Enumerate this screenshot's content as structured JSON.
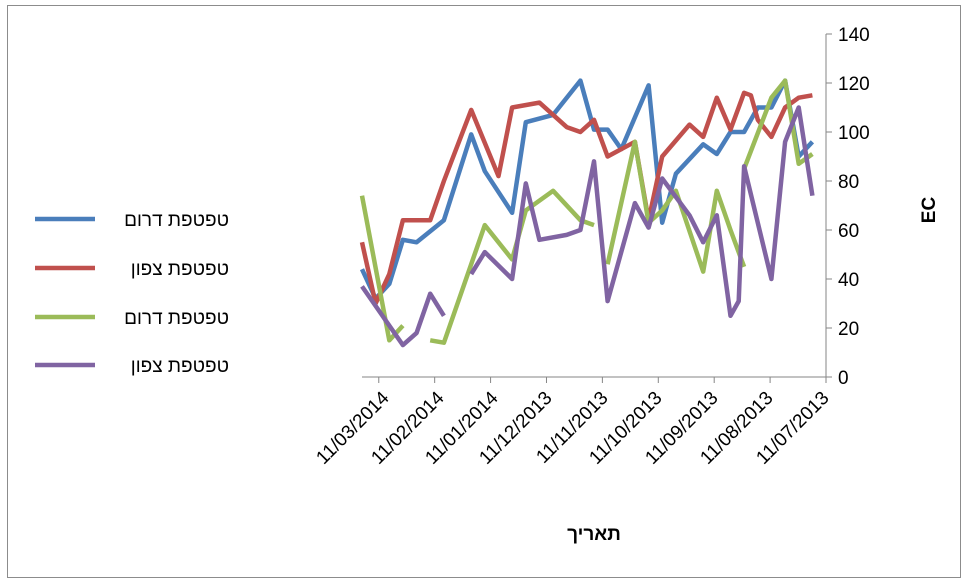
{
  "chart_data": {
    "type": "line",
    "xlabel": "תאריך",
    "ylabel": "EC",
    "ylim": [
      0,
      140
    ],
    "y_ticks": [
      "0",
      "20",
      "40",
      "60",
      "80",
      "100",
      "120",
      "140"
    ],
    "x_tick_labels": [
      "11/03/2014",
      "11/02/2014",
      "11/01/2014",
      "11/12/2013",
      "11/11/2013",
      "11/10/2013",
      "11/09/2013",
      "11/08/2013",
      "11/07/2013"
    ],
    "x_axis_reversed": true,
    "y_axis_position": "right",
    "legend_position": "left",
    "grid": false,
    "series": [
      {
        "name": "טפטפת דרום",
        "color": "#4a7ebb",
        "points": [
          [
            1,
            96
          ],
          [
            2,
            90
          ],
          [
            3,
            121
          ],
          [
            4,
            110
          ],
          [
            5,
            110
          ],
          [
            5.5,
            105
          ],
          [
            6,
            100
          ],
          [
            7,
            100
          ],
          [
            8,
            91
          ],
          [
            9,
            95
          ],
          [
            11,
            83
          ],
          [
            12,
            63
          ],
          [
            13,
            119
          ],
          [
            15,
            93
          ],
          [
            16,
            101
          ],
          [
            17,
            101
          ],
          [
            18,
            121
          ],
          [
            20,
            107
          ],
          [
            22,
            104
          ],
          [
            23,
            67
          ],
          [
            25,
            84
          ],
          [
            26,
            99
          ],
          [
            28,
            64
          ],
          [
            30,
            55
          ],
          [
            31,
            56
          ],
          [
            32,
            38
          ],
          [
            33,
            32
          ],
          [
            34,
            44
          ]
        ]
      },
      {
        "name": "טפטפת צפון",
        "color": "#c0504d",
        "points": [
          [
            1,
            115
          ],
          [
            2,
            114
          ],
          [
            3,
            110
          ],
          [
            4,
            98
          ],
          [
            5,
            105
          ],
          [
            5.5,
            115
          ],
          [
            6,
            116
          ],
          [
            7,
            101
          ],
          [
            8,
            114
          ],
          [
            9,
            98
          ],
          [
            10,
            103
          ],
          [
            12,
            90
          ],
          [
            13,
            64
          ],
          [
            14,
            96
          ],
          [
            16,
            90
          ],
          [
            17,
            105
          ],
          [
            18,
            100
          ],
          [
            19,
            102
          ],
          [
            21,
            112
          ],
          [
            23,
            110
          ],
          [
            24,
            82
          ],
          [
            26,
            109
          ],
          [
            28,
            80
          ],
          [
            29,
            64
          ],
          [
            31,
            64
          ],
          [
            32,
            42
          ],
          [
            33,
            30
          ],
          [
            34,
            55
          ]
        ]
      },
      {
        "name": "טפטפת דרום",
        "color": "#9bbb59",
        "points": [
          [
            1,
            91
          ],
          [
            2,
            87
          ],
          [
            3,
            121
          ],
          [
            4,
            114
          ],
          [
            6,
            85
          ],
          [
            null,
            null
          ],
          [
            6,
            45
          ],
          [
            7,
            60
          ],
          [
            8,
            76
          ],
          [
            9,
            43
          ],
          [
            11,
            76
          ],
          [
            12,
            68
          ],
          [
            13,
            63
          ],
          [
            14,
            96
          ],
          [
            16,
            46
          ],
          [
            null,
            null
          ],
          [
            17,
            62
          ],
          [
            18,
            64
          ],
          [
            20,
            76
          ],
          [
            22,
            68
          ],
          [
            23,
            48
          ],
          [
            25,
            62
          ],
          [
            28,
            14
          ],
          [
            29,
            15
          ],
          [
            null,
            null
          ],
          [
            31,
            21
          ],
          [
            32,
            15
          ],
          [
            34,
            74
          ]
        ]
      },
      {
        "name": "טפטפת צפון",
        "color": "#8064a2",
        "points": [
          [
            1,
            74
          ],
          [
            2,
            110
          ],
          [
            3,
            96
          ],
          [
            4,
            40
          ],
          [
            6,
            86
          ],
          [
            6.4,
            31
          ],
          [
            7,
            25
          ],
          [
            8,
            66
          ],
          [
            9,
            55
          ],
          [
            10,
            66
          ],
          [
            12,
            81
          ],
          [
            13,
            61
          ],
          [
            14,
            71
          ],
          [
            16,
            31
          ],
          [
            17,
            88
          ],
          [
            18,
            60
          ],
          [
            19,
            58
          ],
          [
            21,
            56
          ],
          [
            22,
            79
          ],
          [
            23,
            40
          ],
          [
            25,
            51
          ],
          [
            26,
            42
          ],
          [
            null,
            null
          ],
          [
            28,
            25
          ],
          [
            29,
            34
          ],
          [
            30,
            18
          ],
          [
            31,
            13
          ],
          [
            34,
            37
          ]
        ]
      }
    ]
  }
}
